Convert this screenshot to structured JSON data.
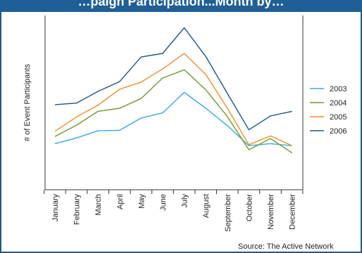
{
  "title": "…paign Participation...Month by…",
  "source": "Source: The Active Network",
  "chart_data": {
    "type": "line",
    "title": "…paign Participation...Month by…",
    "ylabel": "# of Event Participants",
    "xlabel": "",
    "categories": [
      "January",
      "February",
      "March",
      "April",
      "May",
      "June",
      "July",
      "August",
      "September",
      "October",
      "November",
      "December"
    ],
    "yticks_shown": false,
    "grid": false,
    "legend_position": "right",
    "series": [
      {
        "name": "2003",
        "color": "#3aa8dc",
        "values": [
          9.0,
          10.1,
          11.5,
          11.6,
          14.0,
          15.0,
          19.0,
          15.9,
          12.5,
          8.6,
          9.0,
          8.6
        ]
      },
      {
        "name": "2004",
        "color": "#6e9a2e",
        "values": [
          10.4,
          12.6,
          15.3,
          15.9,
          17.8,
          21.8,
          23.4,
          19.5,
          14.3,
          7.8,
          10.0,
          7.2
        ]
      },
      {
        "name": "2005",
        "color": "#f08c28",
        "values": [
          11.4,
          14.2,
          16.5,
          19.6,
          21.0,
          23.6,
          26.6,
          22.5,
          15.9,
          8.8,
          10.5,
          8.6
        ]
      },
      {
        "name": "2006",
        "color": "#1a5687",
        "values": [
          16.6,
          16.9,
          19.2,
          21.1,
          25.9,
          26.6,
          31.6,
          26.0,
          18.8,
          11.7,
          14.4,
          15.3
        ]
      }
    ]
  }
}
